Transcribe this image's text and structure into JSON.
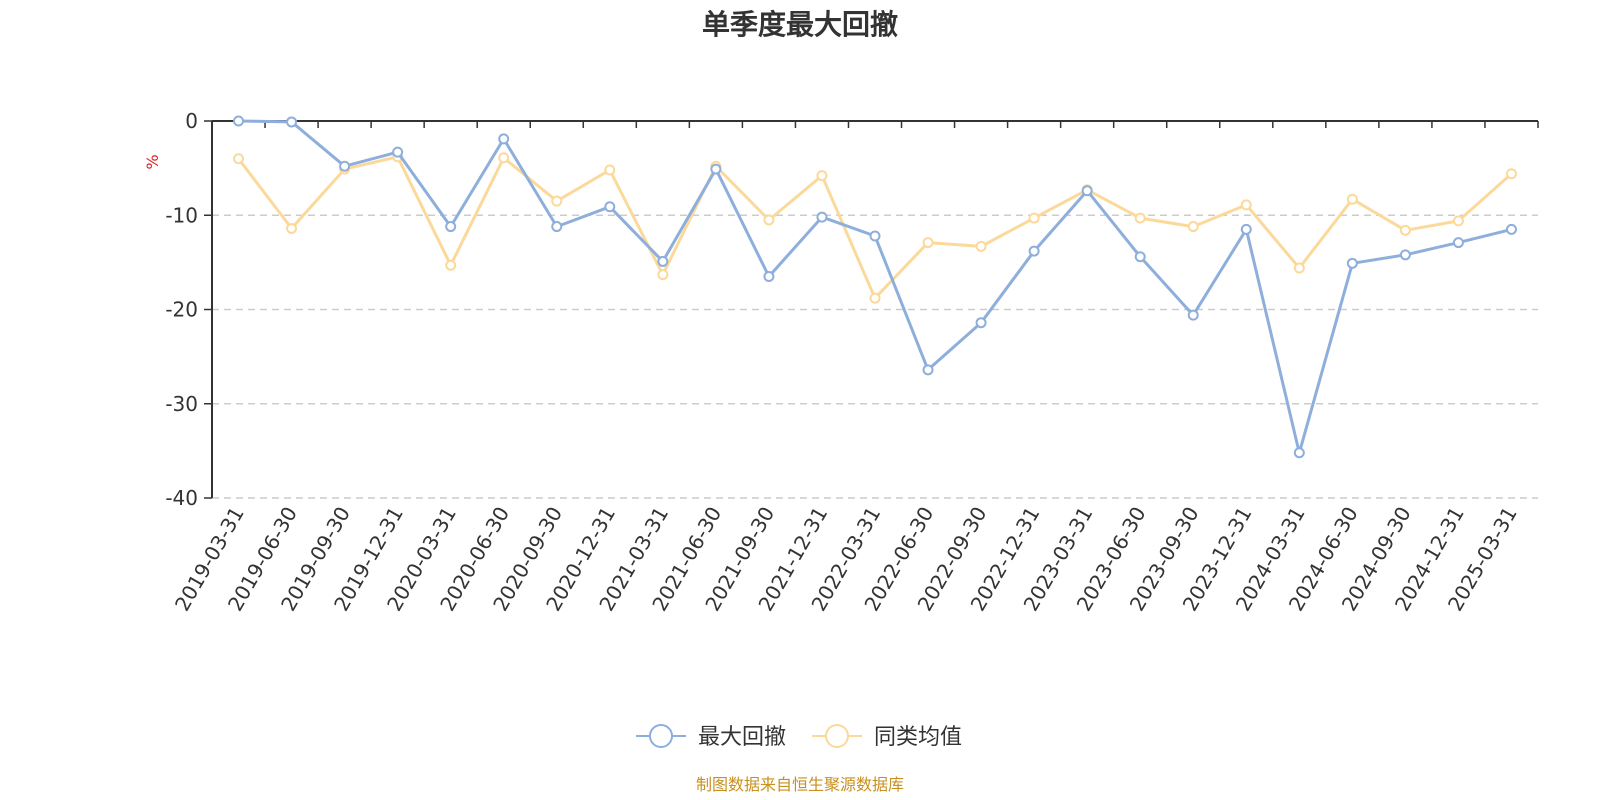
{
  "chart_data": {
    "type": "line",
    "title": "单季度最大回撤",
    "ylabel": "%",
    "xlabel": "",
    "ylim": [
      -40,
      0
    ],
    "yticks": [
      0,
      -10,
      -20,
      -30,
      -40
    ],
    "grid": "horizontal dashed",
    "legend_position": "bottom-center",
    "categories": [
      "2019-03-31",
      "2019-06-30",
      "2019-09-30",
      "2019-12-31",
      "2020-03-31",
      "2020-06-30",
      "2020-09-30",
      "2020-12-31",
      "2021-03-31",
      "2021-06-30",
      "2021-09-30",
      "2021-12-31",
      "2022-03-31",
      "2022-06-30",
      "2022-09-30",
      "2022-12-31",
      "2023-03-31",
      "2023-06-30",
      "2023-09-30",
      "2023-12-31",
      "2024-03-31",
      "2024-06-30",
      "2024-09-30",
      "2024-12-31",
      "2025-03-31"
    ],
    "series": [
      {
        "name": "最大回撤",
        "color": "#8eaedb",
        "values": [
          0,
          -0.1,
          -4.8,
          -3.3,
          -11.2,
          -1.9,
          -11.2,
          -9.1,
          -14.9,
          -5.1,
          -16.5,
          -10.2,
          -12.2,
          -26.4,
          -21.4,
          -13.8,
          -7.4,
          -14.4,
          -20.6,
          -11.5,
          -35.2,
          -15.1,
          -14.2,
          -12.9,
          -11.5
        ]
      },
      {
        "name": "同类均值",
        "color": "#fbd99a",
        "values": [
          -4.0,
          -11.4,
          -5.1,
          -3.8,
          -15.3,
          -3.9,
          -8.5,
          -5.2,
          -16.3,
          -4.8,
          -10.5,
          -5.8,
          -18.8,
          -12.9,
          -13.3,
          -10.3,
          -7.3,
          -10.3,
          -11.2,
          -8.9,
          -15.6,
          -8.3,
          -11.6,
          -10.6,
          -5.6
        ]
      }
    ]
  },
  "source_note": "制图数据来自恒生聚源数据库"
}
